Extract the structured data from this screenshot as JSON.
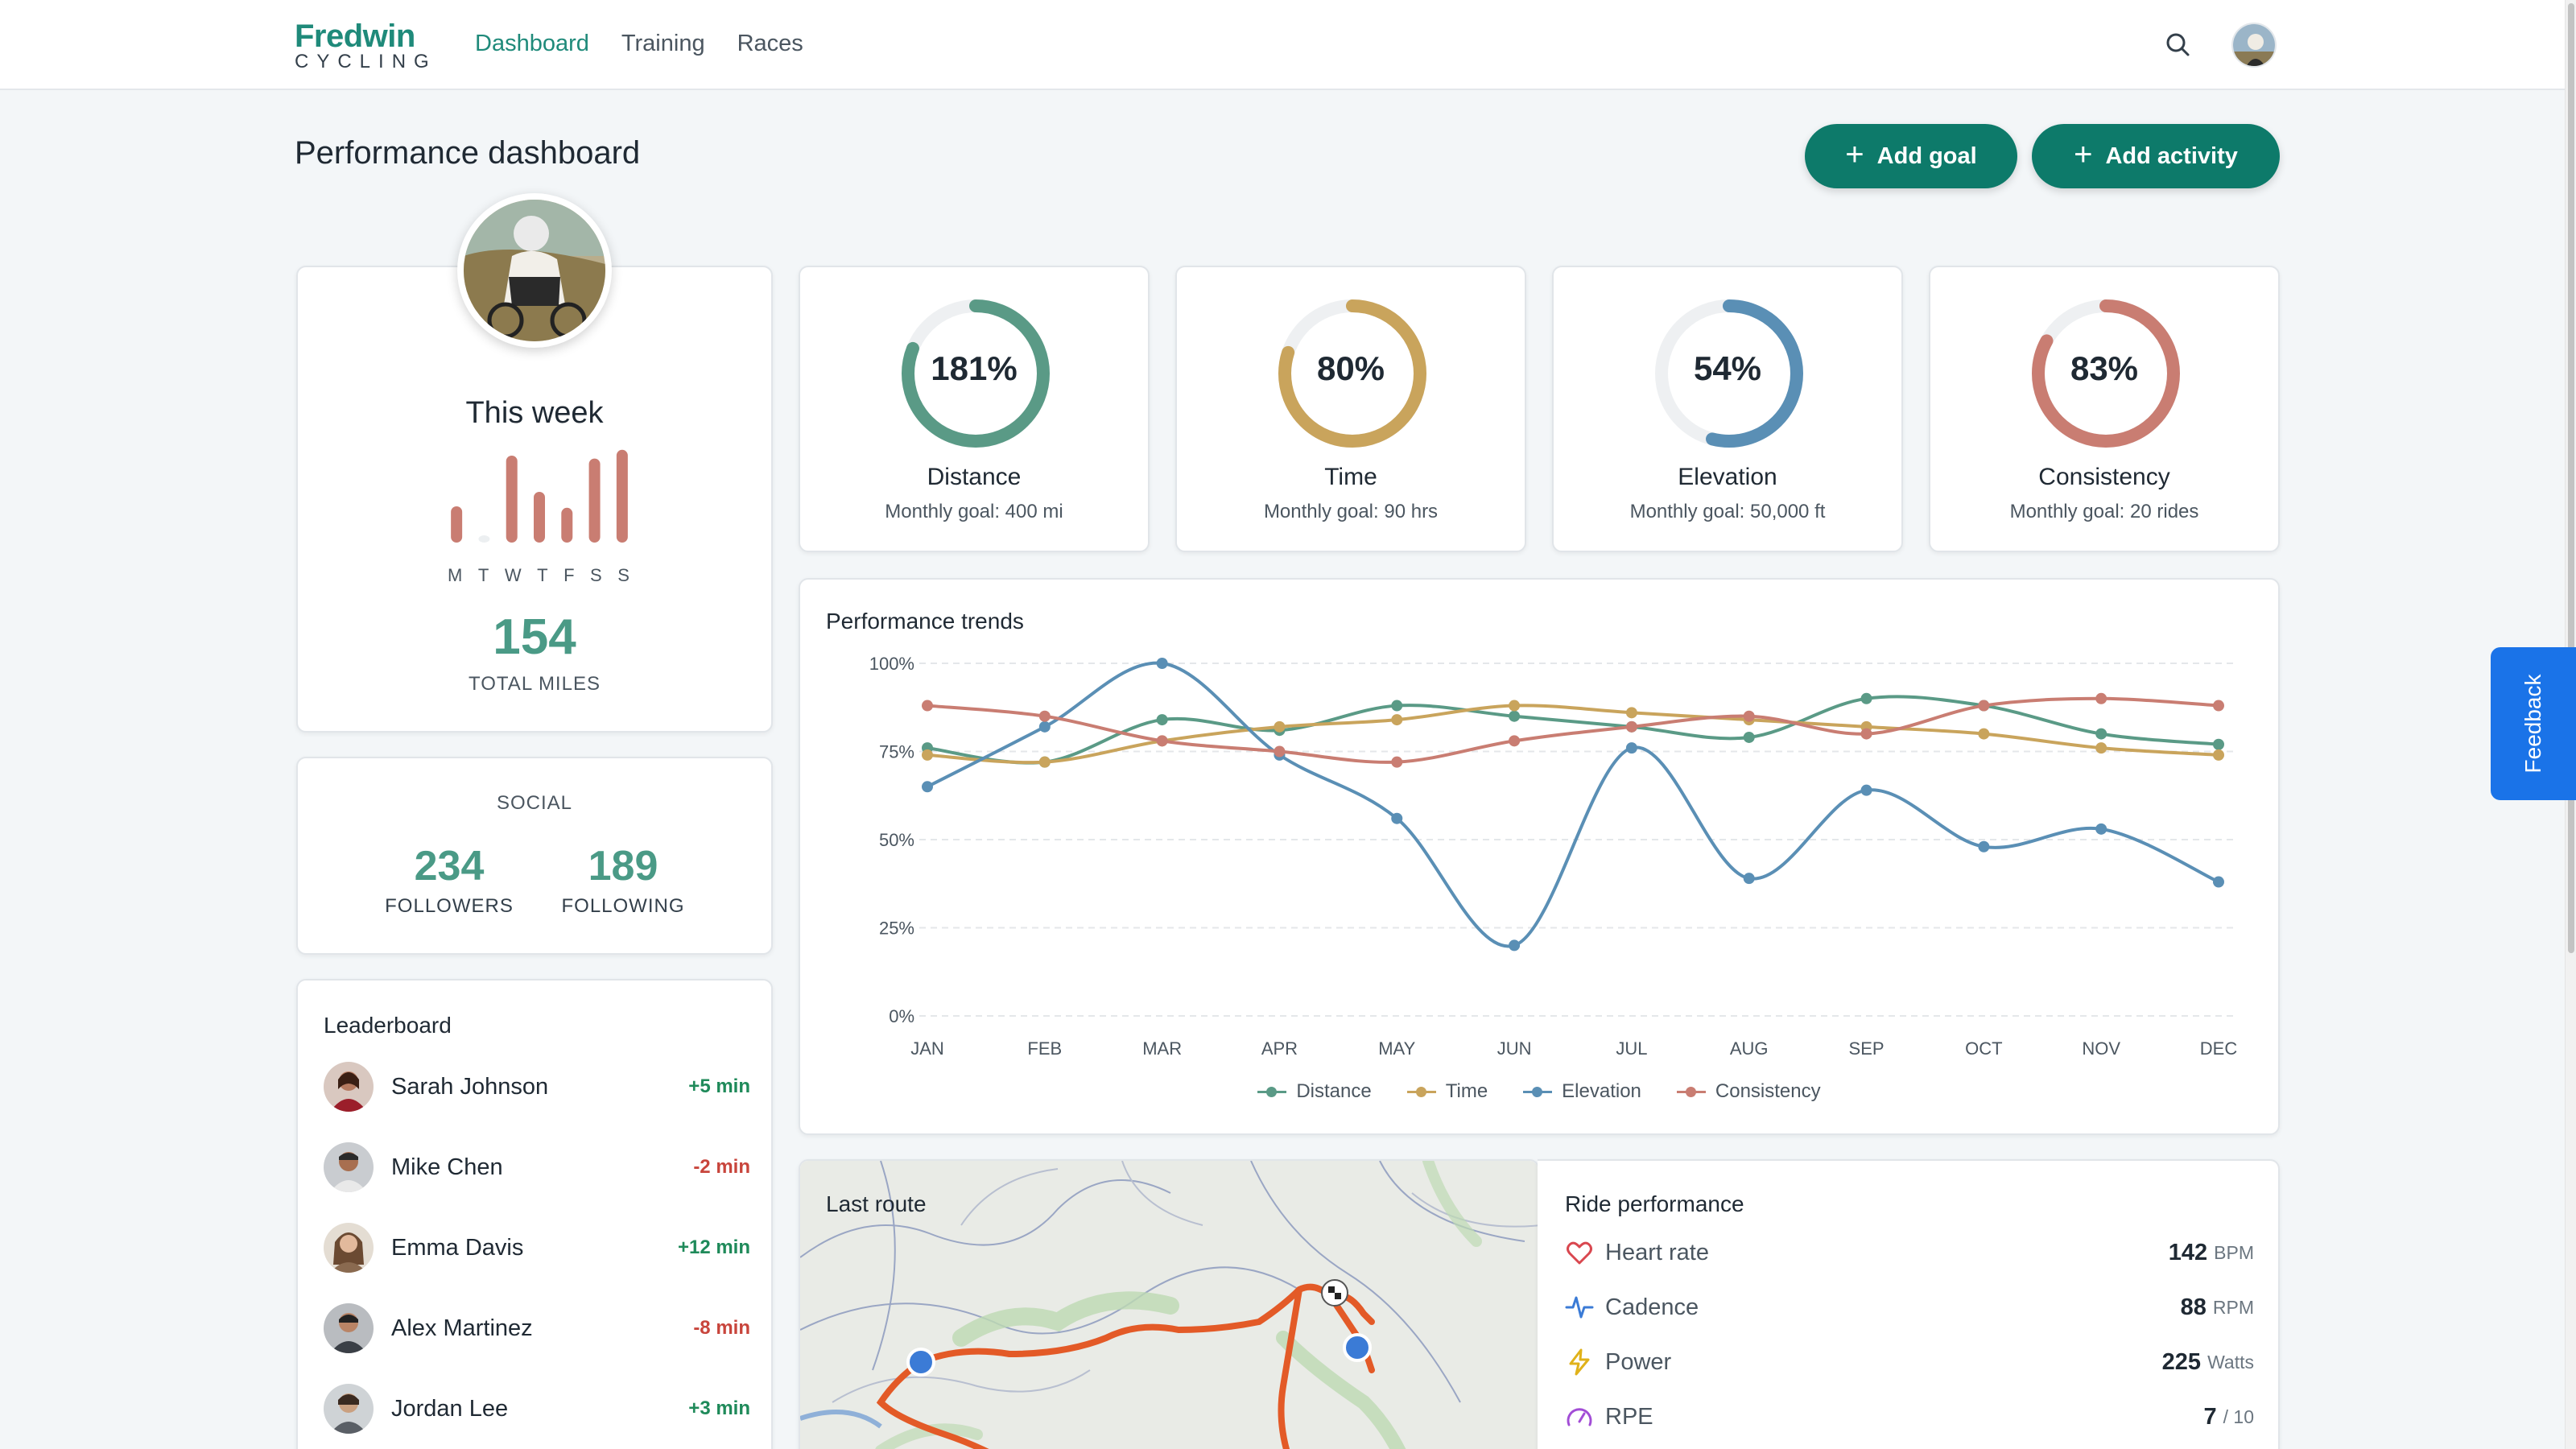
{
  "app": {
    "logo_main": "Fredwin",
    "logo_sub": "CYCLING"
  },
  "nav": [
    {
      "label": "Dashboard",
      "active": true
    },
    {
      "label": "Training",
      "active": false
    },
    {
      "label": "Races",
      "active": false
    }
  ],
  "header_icons": [
    "search-icon",
    "user-avatar"
  ],
  "page": {
    "title": "Performance dashboard",
    "add_goal": "Add goal",
    "add_activity": "Add activity"
  },
  "this_week": {
    "title": "This week",
    "days": [
      "M",
      "T",
      "W",
      "T",
      "F",
      "S",
      "S"
    ],
    "bar_values": [
      0.25,
      0.05,
      0.6,
      0.35,
      0.24,
      0.58,
      0.64
    ],
    "total_miles": "154",
    "total_label": "TOTAL MILES"
  },
  "social": {
    "title": "SOCIAL",
    "followers": "234",
    "followers_label": "FOLLOWERS",
    "following": "189",
    "following_label": "FOLLOWING"
  },
  "leaderboard": {
    "title": "Leaderboard",
    "rows": [
      {
        "name": "Sarah Johnson",
        "delta": "+5 min",
        "positive": true
      },
      {
        "name": "Mike Chen",
        "delta": "-2 min",
        "positive": false
      },
      {
        "name": "Emma Davis",
        "delta": "+12 min",
        "positive": true
      },
      {
        "name": "Alex Martinez",
        "delta": "-8 min",
        "positive": false
      },
      {
        "name": "Jordan Lee",
        "delta": "+3 min",
        "positive": true
      }
    ]
  },
  "goals": [
    {
      "pct": "181%",
      "progress": 1.81,
      "name": "Distance",
      "sub": "Monthly goal: 400 mi",
      "color": "#5a9a86"
    },
    {
      "pct": "80%",
      "progress": 0.8,
      "name": "Time",
      "sub": "Monthly goal: 90 hrs",
      "color": "#c9a45c"
    },
    {
      "pct": "54%",
      "progress": 0.54,
      "name": "Elevation",
      "sub": "Monthly goal: 50,000 ft",
      "color": "#5a8fb5"
    },
    {
      "pct": "83%",
      "progress": 0.83,
      "name": "Consistency",
      "sub": "Monthly goal: 20 rides",
      "color": "#c97d72"
    }
  ],
  "chart_data": {
    "type": "line",
    "title": "Performance trends",
    "categories": [
      "JAN",
      "FEB",
      "MAR",
      "APR",
      "MAY",
      "JUN",
      "JUL",
      "AUG",
      "SEP",
      "OCT",
      "NOV",
      "DEC"
    ],
    "y_ticks": [
      "0%",
      "25%",
      "50%",
      "75%",
      "100%"
    ],
    "ylim": [
      0,
      100
    ],
    "grid": true,
    "legend": "bottom-center",
    "series": [
      {
        "name": "Distance",
        "color": "#5a9a86",
        "values": [
          76,
          72,
          84,
          81,
          88,
          85,
          82,
          79,
          90,
          88,
          80,
          77
        ]
      },
      {
        "name": "Time",
        "color": "#c9a45c",
        "values": [
          74,
          72,
          78,
          82,
          84,
          88,
          86,
          84,
          82,
          80,
          76,
          74
        ]
      },
      {
        "name": "Elevation",
        "color": "#5a8fb5",
        "values": [
          65,
          82,
          100,
          74,
          56,
          20,
          76,
          39,
          64,
          48,
          53,
          38
        ]
      },
      {
        "name": "Consistency",
        "color": "#c97d72",
        "values": [
          88,
          85,
          78,
          75,
          72,
          78,
          82,
          85,
          80,
          88,
          90,
          88
        ]
      }
    ]
  },
  "route": {
    "title": "Last route"
  },
  "ride": {
    "title": "Ride performance",
    "rows": [
      {
        "label": "Heart rate",
        "value": "142",
        "unit": "BPM",
        "icon": "heart-icon"
      },
      {
        "label": "Cadence",
        "value": "88",
        "unit": "RPM",
        "icon": "pulse-icon"
      },
      {
        "label": "Power",
        "value": "225",
        "unit": "Watts",
        "icon": "bolt-icon"
      },
      {
        "label": "RPE",
        "value": "7",
        "unit": "/ 10",
        "icon": "gauge-icon"
      }
    ]
  },
  "feedback": "Feedback"
}
